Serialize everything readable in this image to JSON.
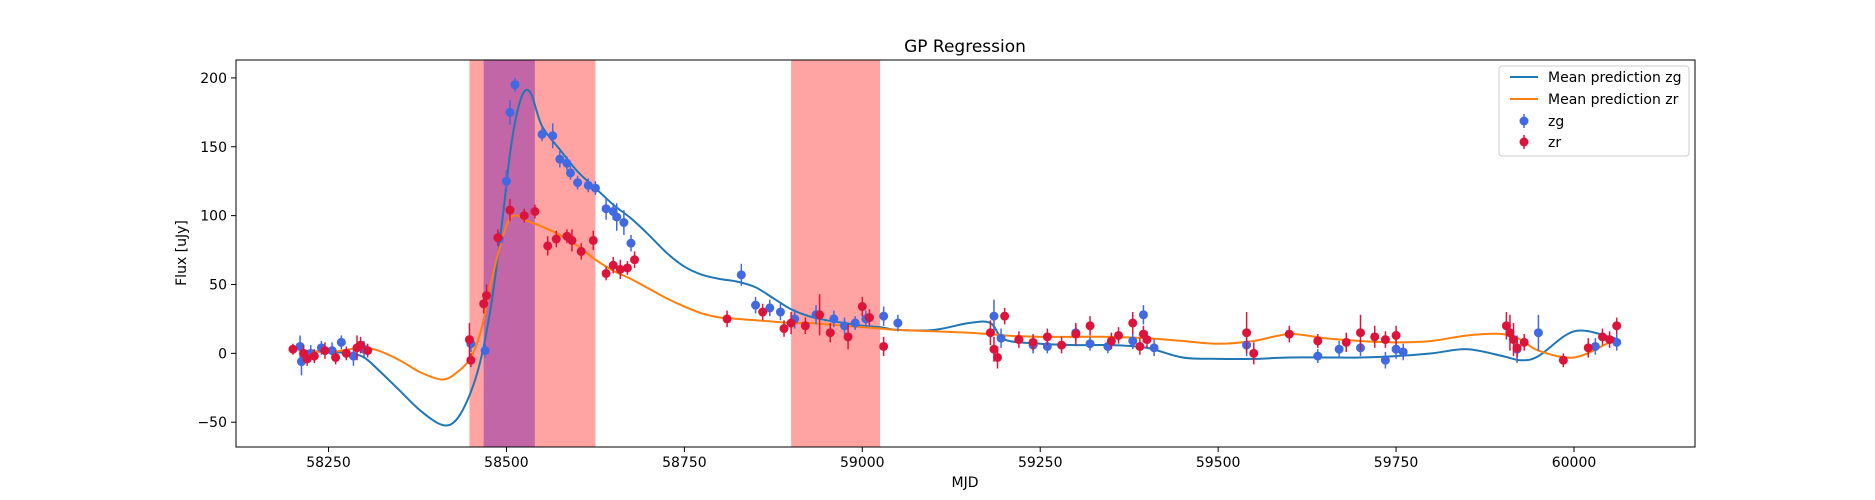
{
  "chart_data": {
    "type": "scatter",
    "title": "GP Regression",
    "xlabel": "MJD",
    "ylabel": "Flux [uJy]",
    "xlim": [
      58120,
      60170
    ],
    "ylim": [
      -68,
      213
    ],
    "xticks": [
      58250,
      58500,
      58750,
      59000,
      59250,
      59500,
      59750,
      60000
    ],
    "yticks": [
      -50,
      0,
      50,
      100,
      150,
      200
    ],
    "grid": false,
    "legend_position": "top-right",
    "legend": [
      "Mean prediction zg",
      "Mean prediction zr",
      "zg",
      "zr"
    ],
    "shaded_regions": [
      {
        "x0": 58448,
        "x1": 58540,
        "color": "#ffa3a3"
      },
      {
        "x0": 58468,
        "x1": 58540,
        "color": "#c266a8"
      },
      {
        "x0": 58540,
        "x1": 58625,
        "color": "#ffa3a3"
      },
      {
        "x0": 58900,
        "x1": 59025,
        "color": "#ffa3a3"
      }
    ],
    "series": [
      {
        "name": "Mean prediction zg",
        "kind": "line",
        "color": "#1f77b4",
        "x": [
          58210,
          58250,
          58280,
          58300,
          58320,
          58350,
          58380,
          58410,
          58430,
          58450,
          58465,
          58480,
          58495,
          58505,
          58515,
          58525,
          58535,
          58550,
          58575,
          58600,
          58625,
          58650,
          58675,
          58700,
          58725,
          58750,
          58775,
          58800,
          58825,
          58850,
          58875,
          58900,
          58925,
          58950,
          58975,
          59000,
          59025,
          59050,
          59100,
          59150,
          59180,
          59200,
          59250,
          59300,
          59350,
          59400,
          59450,
          59500,
          59550,
          59600,
          59650,
          59700,
          59750,
          59800,
          59850,
          59900,
          59925,
          59950,
          60000,
          60050,
          60060
        ],
        "y": [
          2,
          1,
          0,
          -3,
          -12,
          -27,
          -42,
          -52,
          -48,
          -28,
          -2,
          40,
          100,
          145,
          175,
          190,
          188,
          165,
          148,
          132,
          120,
          108,
          98,
          86,
          73,
          63,
          57,
          54,
          52,
          48,
          40,
          32,
          27,
          24,
          22,
          20,
          19,
          17,
          17,
          22,
          22,
          10,
          7,
          6,
          6,
          4,
          -3,
          -4,
          -4,
          -3,
          -3,
          -3,
          -2,
          0,
          3,
          -2,
          -5,
          -2,
          16,
          12,
          10
        ]
      },
      {
        "name": "Mean prediction zr",
        "kind": "line",
        "color": "#ff7f0e",
        "x": [
          58210,
          58250,
          58280,
          58300,
          58320,
          58350,
          58380,
          58410,
          58430,
          58450,
          58465,
          58480,
          58495,
          58505,
          58515,
          58525,
          58535,
          58550,
          58575,
          58600,
          58625,
          58650,
          58675,
          58700,
          58725,
          58750,
          58775,
          58800,
          58825,
          58850,
          58875,
          58900,
          58925,
          58950,
          58975,
          59000,
          59025,
          59050,
          59100,
          59150,
          59180,
          59200,
          59250,
          59300,
          59350,
          59400,
          59450,
          59500,
          59550,
          59600,
          59650,
          59700,
          59750,
          59800,
          59850,
          59900,
          59925,
          59950,
          60000,
          60050,
          60060
        ],
        "y": [
          2,
          1,
          3,
          4,
          2,
          -5,
          -14,
          -19,
          -14,
          -3,
          18,
          55,
          85,
          98,
          100,
          97,
          95,
          92,
          86,
          78,
          68,
          60,
          54,
          47,
          40,
          34,
          29,
          26,
          25,
          24,
          23,
          22,
          22,
          21,
          20,
          19,
          18,
          17,
          16,
          15,
          14,
          13,
          12,
          12,
          12,
          11,
          9,
          7,
          9,
          14,
          11,
          9,
          8,
          9,
          13,
          14,
          10,
          2,
          -3,
          8,
          10
        ]
      },
      {
        "name": "zg",
        "kind": "scatter",
        "color": "#4169e1",
        "x": [
          58210,
          58212,
          58225,
          58240,
          58255,
          58268,
          58285,
          58300,
          58450,
          58470,
          58490,
          58500,
          58505,
          58512,
          58550,
          58565,
          58575,
          58585,
          58590,
          58600,
          58615,
          58625,
          58640,
          58650,
          58655,
          58665,
          58675,
          58830,
          58850,
          58870,
          58885,
          58905,
          58935,
          58960,
          58975,
          58990,
          59005,
          59030,
          59050,
          59185,
          59195,
          59240,
          59260,
          59300,
          59320,
          59345,
          59380,
          59395,
          59410,
          59540,
          59640,
          59670,
          59700,
          59735,
          59750,
          59760,
          59920,
          59950,
          60030,
          60060
        ],
        "y": [
          5,
          -6,
          0,
          4,
          2,
          8,
          -2,
          3,
          7,
          2,
          83,
          125,
          175,
          195,
          159,
          158,
          141,
          138,
          131,
          124,
          122,
          120,
          105,
          103,
          99,
          95,
          80,
          57,
          35,
          33,
          30,
          25,
          28,
          25,
          20,
          22,
          25,
          27,
          22,
          27,
          11,
          6,
          5,
          15,
          7,
          5,
          9,
          28,
          4,
          6,
          -2,
          3,
          4,
          -5,
          3,
          1,
          3,
          15,
          5,
          8
        ],
        "yerr": [
          8,
          10,
          6,
          5,
          6,
          5,
          7,
          6,
          6,
          5,
          5,
          8,
          9,
          5,
          5,
          9,
          6,
          5,
          5,
          5,
          5,
          5,
          8,
          6,
          10,
          9,
          6,
          8,
          6,
          6,
          6,
          7,
          7,
          6,
          6,
          5,
          6,
          7,
          6,
          12,
          7,
          6,
          5,
          6,
          5,
          5,
          6,
          7,
          6,
          8,
          5,
          6,
          6,
          6,
          7,
          6,
          10,
          13,
          6,
          6
        ]
      },
      {
        "name": "zr",
        "kind": "scatter",
        "color": "#dc143c",
        "x": [
          58200,
          58215,
          58220,
          58230,
          58245,
          58260,
          58275,
          58290,
          58295,
          58305,
          58448,
          58450,
          58468,
          58472,
          58488,
          58505,
          58525,
          58540,
          58558,
          58570,
          58585,
          58592,
          58605,
          58622,
          58640,
          58650,
          58660,
          58670,
          58680,
          58810,
          58860,
          58890,
          58900,
          58920,
          58940,
          58955,
          58980,
          59000,
          59010,
          59030,
          59180,
          59185,
          59190,
          59200,
          59220,
          59240,
          59260,
          59280,
          59300,
          59320,
          59350,
          59360,
          59380,
          59390,
          59395,
          59400,
          59540,
          59550,
          59600,
          59640,
          59680,
          59700,
          59720,
          59735,
          59750,
          59905,
          59910,
          59915,
          59920,
          59930,
          59985,
          60020,
          60040,
          60050,
          60060
        ],
        "y": [
          3,
          0,
          -4,
          -2,
          2,
          -3,
          0,
          4,
          6,
          2,
          10,
          -5,
          36,
          42,
          84,
          104,
          100,
          103,
          78,
          83,
          85,
          82,
          74,
          82,
          58,
          64,
          61,
          62,
          68,
          25,
          30,
          18,
          22,
          20,
          28,
          15,
          12,
          34,
          26,
          5,
          15,
          3,
          -3,
          27,
          10,
          8,
          12,
          6,
          14,
          20,
          9,
          13,
          22,
          5,
          14,
          10,
          15,
          0,
          14,
          9,
          8,
          15,
          12,
          10,
          13,
          20,
          15,
          10,
          4,
          8,
          -5,
          4,
          12,
          10,
          20
        ],
        "yerr": [
          4,
          6,
          5,
          5,
          6,
          5,
          5,
          9,
          6,
          5,
          12,
          5,
          7,
          8,
          6,
          8,
          5,
          5,
          7,
          6,
          5,
          8,
          6,
          7,
          5,
          6,
          7,
          5,
          6,
          6,
          6,
          6,
          8,
          6,
          15,
          7,
          9,
          7,
          6,
          7,
          9,
          9,
          8,
          6,
          6,
          6,
          6,
          6,
          8,
          7,
          6,
          6,
          8,
          6,
          6,
          6,
          15,
          8,
          6,
          5,
          7,
          13,
          8,
          6,
          7,
          10,
          13,
          12,
          7,
          6,
          5,
          7,
          6,
          6,
          6
        ]
      }
    ]
  }
}
